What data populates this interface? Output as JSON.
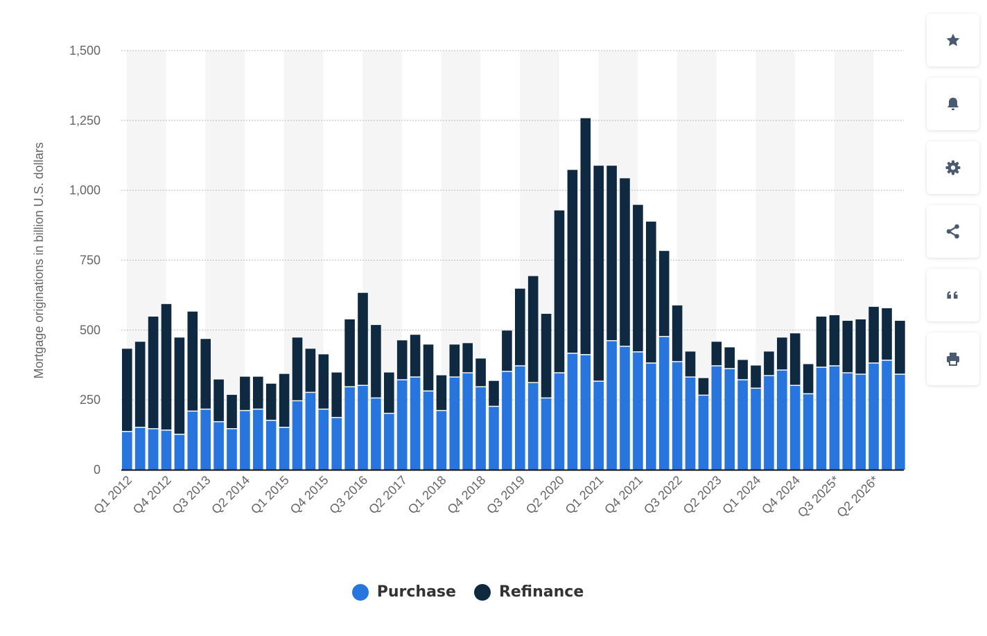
{
  "chart_data": {
    "type": "bar",
    "stacked": true,
    "ylabel": "Mortgage originations in billion U.S. dollars",
    "ylim": [
      0,
      1500
    ],
    "yticks": [
      0,
      250,
      500,
      750,
      1000,
      1250,
      1500
    ],
    "ytick_labels": [
      "0",
      "250",
      "500",
      "750",
      "1,000",
      "1,250",
      "1,500"
    ],
    "grid": "horizontal dotted",
    "legend_position": "bottom",
    "categories": [
      "Q1 2012",
      "Q2 2012",
      "Q3 2012",
      "Q4 2012",
      "Q1 2013",
      "Q2 2013",
      "Q3 2013",
      "Q4 2013",
      "Q1 2014",
      "Q2 2014",
      "Q3 2014",
      "Q4 2014",
      "Q1 2015",
      "Q2 2015",
      "Q3 2015",
      "Q4 2015",
      "Q1 2016",
      "Q2 2016",
      "Q3 2016",
      "Q4 2016",
      "Q1 2017",
      "Q2 2017",
      "Q3 2017",
      "Q4 2017",
      "Q1 2018",
      "Q2 2018",
      "Q3 2018",
      "Q4 2018",
      "Q1 2019",
      "Q2 2019",
      "Q3 2019",
      "Q4 2019",
      "Q1 2020",
      "Q2 2020",
      "Q3 2020",
      "Q4 2020",
      "Q1 2021",
      "Q2 2021",
      "Q3 2021",
      "Q4 2021",
      "Q1 2022",
      "Q2 2022",
      "Q3 2022",
      "Q4 2022",
      "Q1 2023",
      "Q2 2023",
      "Q3 2023",
      "Q4 2023",
      "Q1 2024",
      "Q2 2024",
      "Q3 2024",
      "Q4 2024",
      "Q1 2025*",
      "Q2 2025*",
      "Q3 2025*",
      "Q4 2025*",
      "Q1 2026*",
      "Q2 2026*",
      "Q3 2026*",
      "Q4 2026*"
    ],
    "x_tick_labels_shown": [
      "Q1 2012",
      "Q4 2012",
      "Q3 2013",
      "Q2 2014",
      "Q1 2015",
      "Q4 2015",
      "Q3 2016",
      "Q2 2017",
      "Q1 2018",
      "Q4 2018",
      "Q3 2019",
      "Q2 2020",
      "Q1 2021",
      "Q4 2021",
      "Q3 2022",
      "Q2 2023",
      "Q1 2024",
      "Q4 2024",
      "Q3 2025*",
      "Q2 2026*"
    ],
    "series": [
      {
        "name": "Purchase",
        "color": "#2876dd",
        "values": [
          135,
          150,
          145,
          140,
          125,
          208,
          215,
          170,
          145,
          210,
          215,
          175,
          150,
          245,
          275,
          215,
          185,
          295,
          300,
          255,
          200,
          320,
          330,
          280,
          210,
          330,
          345,
          295,
          225,
          350,
          370,
          310,
          255,
          345,
          415,
          410,
          315,
          460,
          440,
          420,
          380,
          475,
          385,
          330,
          265,
          370,
          360,
          320,
          290,
          335,
          355,
          300,
          270,
          365,
          370,
          345,
          340,
          380,
          390,
          340
        ]
      },
      {
        "name": "Refinance",
        "color": "#0f2941",
        "values": [
          298,
          308,
          403,
          453,
          348,
          358,
          253,
          153,
          123,
          123,
          118,
          133,
          193,
          228,
          158,
          198,
          163,
          243,
          333,
          263,
          148,
          143,
          153,
          168,
          128,
          118,
          108,
          103,
          93,
          148,
          278,
          383,
          303,
          583,
          658,
          848,
          773,
          628,
          603,
          528,
          508,
          308,
          203,
          93,
          63,
          88,
          78,
          73,
          83,
          88,
          118,
          188,
          108,
          183,
          183,
          188,
          198,
          203,
          188,
          193
        ]
      }
    ]
  },
  "legend": {
    "purchase_label": "Purchase",
    "refinance_label": "Refinance"
  },
  "sidebar": {
    "icons": [
      "star-icon",
      "bell-icon",
      "gear-icon",
      "share-icon",
      "quote-icon",
      "print-icon"
    ]
  },
  "colors": {
    "purchase": "#2876dd",
    "refinance": "#0f2941",
    "band": "#f5f5f5",
    "grid": "#bbbbbb",
    "tick_text": "#666666",
    "icon": "#4a5a70"
  }
}
